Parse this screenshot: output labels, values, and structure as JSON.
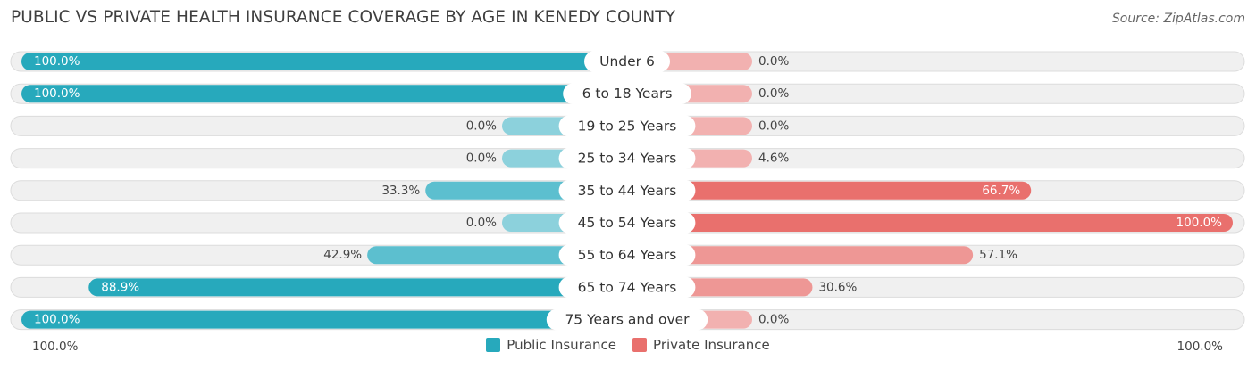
{
  "title": "PUBLIC VS PRIVATE HEALTH INSURANCE COVERAGE BY AGE IN KENEDY COUNTY",
  "source": "Source: ZipAtlas.com",
  "colors": {
    "public": "#27a9bc",
    "public_light": "#8cd1dc",
    "private": "#e9706d",
    "private_light": "#f2b1b0",
    "track": "#f0f0f0",
    "track_border": "#dcdcdc"
  },
  "chart_data": {
    "type": "bar",
    "orientation": "diverging-horizontal",
    "xlim": [
      -100,
      100
    ],
    "categories": [
      "Under 6",
      "6 to 18 Years",
      "19 to 25 Years",
      "25 to 34 Years",
      "35 to 44 Years",
      "45 to 54 Years",
      "55 to 64 Years",
      "65 to 74 Years",
      "75 Years and over"
    ],
    "series": [
      {
        "name": "Public Insurance",
        "values": [
          100.0,
          100.0,
          0.0,
          0.0,
          33.3,
          0.0,
          42.9,
          88.9,
          100.0
        ],
        "labels": [
          "100.0%",
          "100.0%",
          "0.0%",
          "0.0%",
          "33.3%",
          "0.0%",
          "42.9%",
          "88.9%",
          "100.0%"
        ]
      },
      {
        "name": "Private Insurance",
        "values": [
          0.0,
          0.0,
          0.0,
          4.6,
          66.7,
          100.0,
          57.1,
          30.6,
          0.0
        ],
        "labels": [
          "0.0%",
          "0.0%",
          "0.0%",
          "4.6%",
          "66.7%",
          "100.0%",
          "57.1%",
          "30.6%",
          "0.0%"
        ]
      }
    ],
    "axis_labels": {
      "left": "100.0%",
      "right": "100.0%"
    },
    "legend_position": "bottom-center"
  }
}
